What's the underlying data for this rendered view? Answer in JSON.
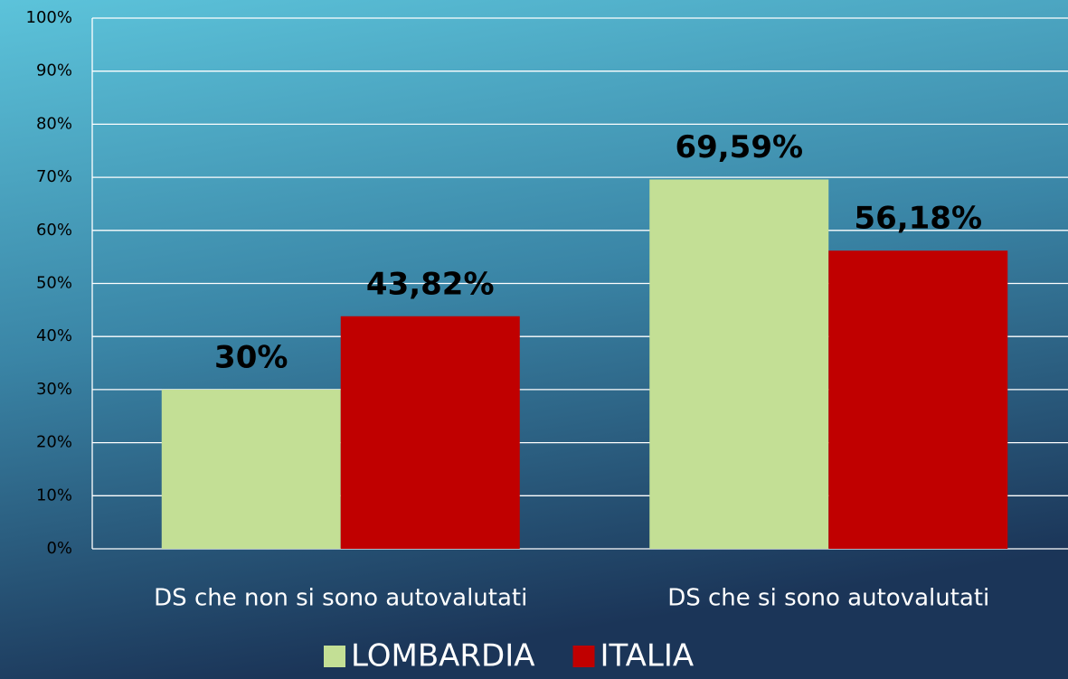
{
  "chart_data": {
    "type": "bar",
    "categories": [
      "DS che non si sono autovalutati",
      "DS che si sono autovalutati"
    ],
    "series": [
      {
        "name": "LOMBARDIA",
        "color": "#c3df95",
        "values": [
          30,
          69.59
        ],
        "value_labels": [
          "30%",
          "69,59%"
        ]
      },
      {
        "name": "ITALIA",
        "color": "#c00000",
        "values": [
          43.82,
          56.18
        ],
        "value_labels": [
          "43,82%",
          "56,18%"
        ]
      }
    ],
    "ylim": [
      0,
      100
    ],
    "yticks": [
      {
        "value": 0,
        "label": "0%"
      },
      {
        "value": 10,
        "label": "10%"
      },
      {
        "value": 20,
        "label": "20%"
      },
      {
        "value": 30,
        "label": "30%"
      },
      {
        "value": 40,
        "label": "40%"
      },
      {
        "value": 50,
        "label": "50%"
      },
      {
        "value": 60,
        "label": "60%"
      },
      {
        "value": 70,
        "label": "70%"
      },
      {
        "value": 80,
        "label": "80%"
      },
      {
        "value": 90,
        "label": "90%"
      },
      {
        "value": 100,
        "label": "100%"
      }
    ],
    "grid": true,
    "legend": "bottom"
  }
}
